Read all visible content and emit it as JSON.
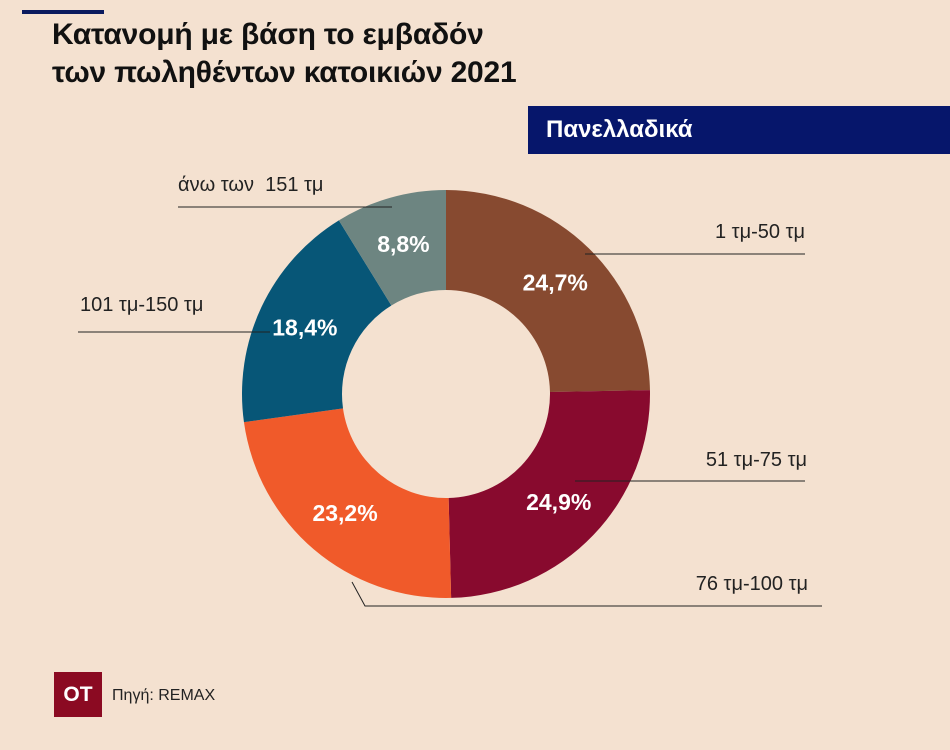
{
  "header": {
    "title_line1": "Κατανομή με βάση το εμβαδόν",
    "title_line2": "των πωληθέντων κατοικιών 2021",
    "region": "Πανελλαδικά"
  },
  "footer": {
    "logo_text": "ΟΤ",
    "source": "Πηγή: REMAX"
  },
  "chart_data": {
    "type": "pie",
    "style": "donut",
    "title": "Κατανομή με βάση το εμβαδόν των πωληθέντων κατοικιών 2021",
    "start": "12 o'clock",
    "direction": "clockwise",
    "slices": [
      {
        "label": "1 τμ-50 τμ",
        "value": 24.7,
        "display": "24,7%",
        "color": "#874a30"
      },
      {
        "label": "51 τμ-75 τμ",
        "value": 24.9,
        "display": "24,9%",
        "color": "#880a2e"
      },
      {
        "label": "76 τμ-100 τμ",
        "value": 23.2,
        "display": "23,2%",
        "color": "#f05a2a"
      },
      {
        "label": "101 τμ-150 τμ",
        "value": 18.4,
        "display": "18,4%",
        "color": "#075677"
      },
      {
        "label": "άνω των  151 τμ",
        "value": 8.8,
        "display": "8,8%",
        "color": "#6d8581"
      }
    ]
  }
}
